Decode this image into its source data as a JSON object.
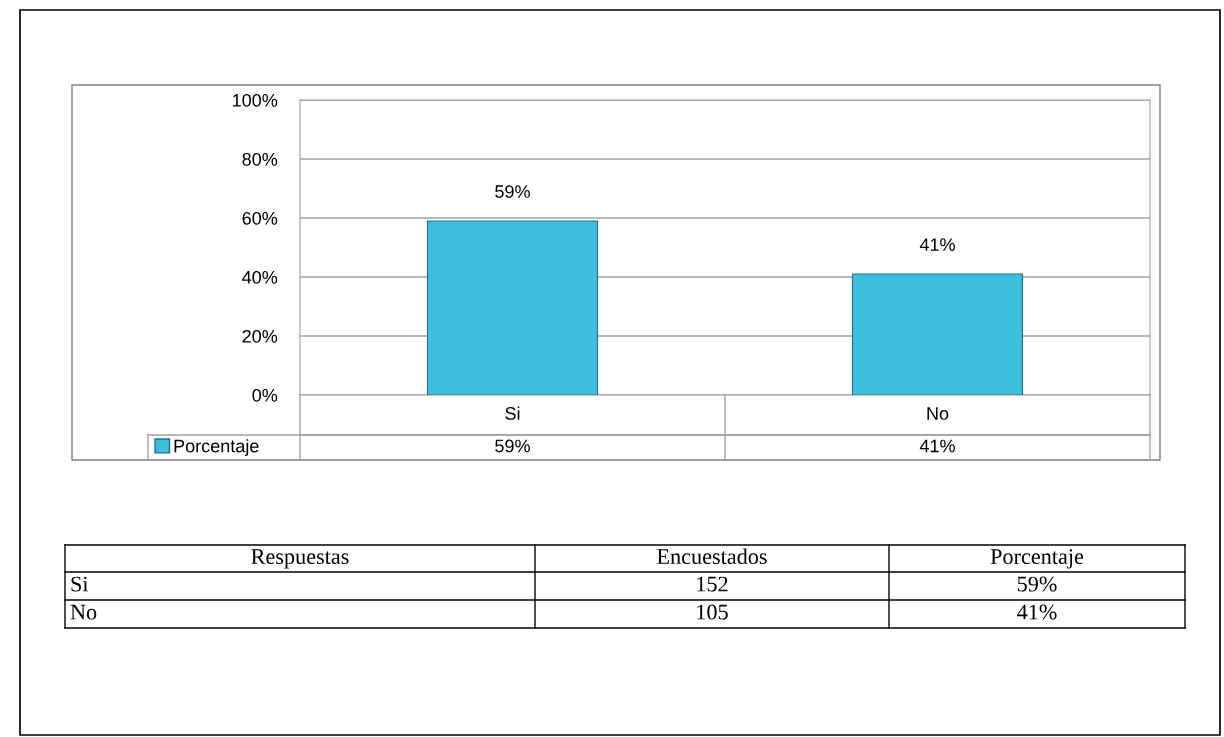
{
  "chart_data": [
    {
      "type": "bar",
      "categories": [
        "Si",
        "No"
      ],
      "series": [
        {
          "name": "Porcentaje",
          "color": "#3fbfdf",
          "values": [
            59,
            41
          ],
          "value_labels": [
            "59%",
            "41%"
          ]
        }
      ],
      "ylim": [
        0,
        100
      ],
      "yticks": [
        {
          "value": 0,
          "label": "0%"
        },
        {
          "value": 20,
          "label": "20%"
        },
        {
          "value": 40,
          "label": "40%"
        },
        {
          "value": 60,
          "label": "60%"
        },
        {
          "value": 80,
          "label": "80%"
        },
        {
          "value": 100,
          "label": "100%"
        }
      ],
      "grid": "y",
      "legend": "bottom left"
    },
    {
      "type": "other",
      "annotations": [
        "Respuestas",
        "Encuestados",
        "Porcentaje",
        "Si",
        "152",
        "59%",
        "No",
        "105",
        "41%"
      ]
    }
  ]
}
